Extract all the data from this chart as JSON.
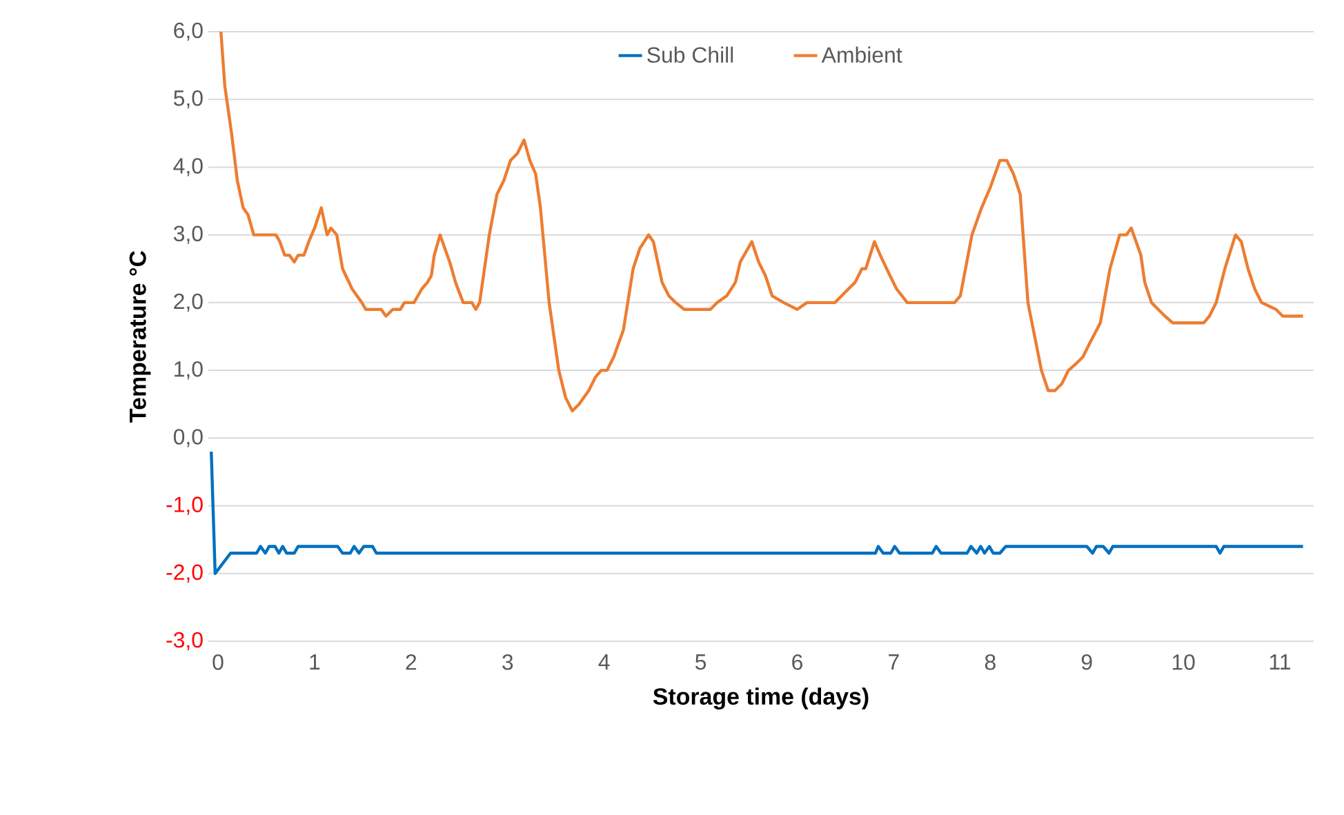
{
  "chart_data": {
    "type": "line",
    "xlabel": "Storage time (days)",
    "ylabel": "Temperature °C",
    "xlim": [
      -0.1,
      11.35
    ],
    "ylim": [
      -3,
      6
    ],
    "xticks": [
      0,
      1,
      2,
      3,
      4,
      5,
      6,
      7,
      8,
      9,
      10,
      11
    ],
    "yticks": [
      {
        "value": -3,
        "label": "-3,0"
      },
      {
        "value": -2,
        "label": "-2,0"
      },
      {
        "value": -1,
        "label": "-1,0"
      },
      {
        "value": 0,
        "label": "0,0"
      },
      {
        "value": 1,
        "label": "1,0"
      },
      {
        "value": 2,
        "label": "2,0"
      },
      {
        "value": 3,
        "label": "3,0"
      },
      {
        "value": 4,
        "label": "4,0"
      },
      {
        "value": 5,
        "label": "5,0"
      },
      {
        "value": 6,
        "label": "6,0"
      }
    ],
    "grid": "y",
    "legend": "top",
    "marker": "none",
    "line_style": "solid",
    "series": [
      {
        "name": "Sub Chill",
        "color": "#0070c0",
        "x": [
          -0.07,
          -0.03,
          0.13,
          0.4,
          0.44,
          0.49,
          0.53,
          0.59,
          0.63,
          0.67,
          0.71,
          0.79,
          0.83,
          1.24,
          1.29,
          1.37,
          1.41,
          1.46,
          1.51,
          1.6,
          1.64,
          6.81,
          6.84,
          6.89,
          6.97,
          7.01,
          7.06,
          7.4,
          7.44,
          7.49,
          7.76,
          7.8,
          7.86,
          7.9,
          7.94,
          7.99,
          8.03,
          8.1,
          8.16,
          9.0,
          9.06,
          9.1,
          9.17,
          9.23,
          9.27,
          10.34,
          10.38,
          10.42,
          11.24
        ],
        "values": [
          -0.2,
          -2.0,
          -1.7,
          -1.7,
          -1.6,
          -1.7,
          -1.6,
          -1.6,
          -1.7,
          -1.6,
          -1.7,
          -1.7,
          -1.6,
          -1.6,
          -1.7,
          -1.7,
          -1.6,
          -1.7,
          -1.6,
          -1.6,
          -1.7,
          -1.7,
          -1.6,
          -1.7,
          -1.7,
          -1.6,
          -1.7,
          -1.7,
          -1.6,
          -1.7,
          -1.7,
          -1.6,
          -1.7,
          -1.6,
          -1.7,
          -1.6,
          -1.7,
          -1.7,
          -1.6,
          -1.6,
          -1.7,
          -1.6,
          -1.6,
          -1.7,
          -1.6,
          -1.6,
          -1.7,
          -1.6,
          -1.6
        ]
      },
      {
        "name": "Ambient",
        "color": "#ed7d31",
        "x": [
          0.03,
          0.07,
          0.14,
          0.2,
          0.26,
          0.31,
          0.37,
          0.6,
          0.64,
          0.69,
          0.74,
          0.79,
          0.83,
          0.89,
          0.94,
          1.0,
          1.07,
          1.13,
          1.17,
          1.23,
          1.29,
          1.39,
          1.49,
          1.53,
          1.69,
          1.74,
          1.81,
          1.89,
          1.93,
          2.03,
          2.11,
          2.17,
          2.21,
          2.24,
          2.3,
          2.4,
          2.46,
          2.54,
          2.63,
          2.67,
          2.71,
          2.81,
          2.89,
          2.96,
          3.03,
          3.1,
          3.17,
          3.23,
          3.29,
          3.34,
          3.43,
          3.53,
          3.6,
          3.67,
          3.74,
          3.84,
          3.91,
          3.97,
          4.03,
          4.1,
          4.2,
          4.3,
          4.37,
          4.46,
          4.51,
          4.6,
          4.67,
          4.74,
          4.83,
          5.1,
          5.17,
          5.27,
          5.36,
          5.41,
          5.53,
          5.6,
          5.67,
          5.74,
          5.86,
          6.0,
          6.1,
          6.39,
          6.46,
          6.6,
          6.67,
          6.71,
          6.8,
          6.86,
          6.96,
          7.03,
          7.14,
          7.63,
          7.69,
          7.81,
          7.91,
          8.0,
          8.1,
          8.17,
          8.24,
          8.31,
          8.39,
          8.53,
          8.6,
          8.67,
          8.74,
          8.81,
          8.89,
          8.96,
          9.03,
          9.14,
          9.24,
          9.34,
          9.41,
          9.46,
          9.56,
          9.6,
          9.67,
          9.74,
          9.81,
          9.89,
          10.21,
          10.27,
          10.34,
          10.43,
          10.54,
          10.6,
          10.67,
          10.74,
          10.81,
          10.96,
          11.03,
          11.24
        ],
        "values": [
          6.0,
          5.2,
          4.5,
          3.8,
          3.4,
          3.3,
          3.0,
          3.0,
          2.9,
          2.7,
          2.7,
          2.6,
          2.7,
          2.7,
          2.9,
          3.1,
          3.4,
          3.0,
          3.1,
          3.0,
          2.5,
          2.2,
          2.0,
          1.9,
          1.9,
          1.8,
          1.9,
          1.9,
          2.0,
          2.0,
          2.2,
          2.3,
          2.4,
          2.7,
          3.0,
          2.6,
          2.3,
          2.0,
          2.0,
          1.9,
          2.0,
          3.0,
          3.6,
          3.8,
          4.1,
          4.2,
          4.4,
          4.1,
          3.9,
          3.4,
          2.0,
          1.0,
          0.6,
          0.4,
          0.5,
          0.7,
          0.9,
          1.0,
          1.0,
          1.2,
          1.6,
          2.5,
          2.8,
          3.0,
          2.9,
          2.3,
          2.1,
          2.0,
          1.9,
          1.9,
          2.0,
          2.1,
          2.3,
          2.6,
          2.9,
          2.6,
          2.4,
          2.1,
          2.0,
          1.9,
          2.0,
          2.0,
          2.1,
          2.3,
          2.5,
          2.5,
          2.9,
          2.7,
          2.4,
          2.2,
          2.0,
          2.0,
          2.1,
          3.0,
          3.4,
          3.7,
          4.1,
          4.1,
          3.9,
          3.6,
          2.0,
          1.0,
          0.7,
          0.7,
          0.8,
          1.0,
          1.1,
          1.2,
          1.4,
          1.7,
          2.5,
          3.0,
          3.0,
          3.1,
          2.7,
          2.3,
          2.0,
          1.9,
          1.8,
          1.7,
          1.7,
          1.8,
          2.0,
          2.5,
          3.0,
          2.9,
          2.5,
          2.2,
          2.0,
          1.9,
          1.8,
          1.8
        ]
      }
    ]
  }
}
